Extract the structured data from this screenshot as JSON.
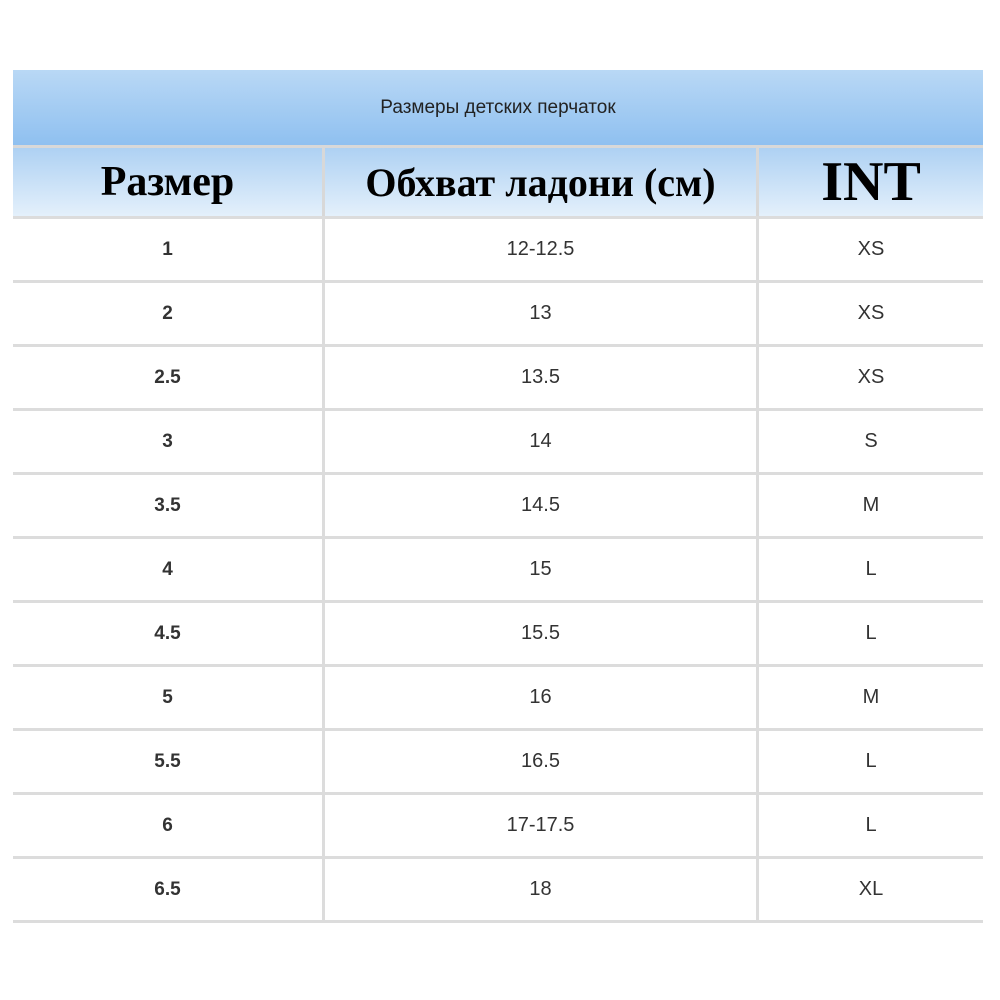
{
  "table": {
    "title": "Размеры детских перчаток",
    "headers": [
      "Размер",
      "Обхват ладони (см)",
      "INT"
    ],
    "rows": [
      [
        "1",
        "12-12.5",
        "XS"
      ],
      [
        "2",
        "13",
        "XS"
      ],
      [
        "2.5",
        "13.5",
        "XS"
      ],
      [
        "3",
        "14",
        "S"
      ],
      [
        "3.5",
        "14.5",
        "M"
      ],
      [
        "4",
        "15",
        "L"
      ],
      [
        "4.5",
        "15.5",
        "L"
      ],
      [
        "5",
        "16",
        "M"
      ],
      [
        "5.5",
        "16.5",
        "L"
      ],
      [
        "6",
        "17-17.5",
        "L"
      ],
      [
        "6.5",
        "18",
        "XL"
      ]
    ]
  }
}
